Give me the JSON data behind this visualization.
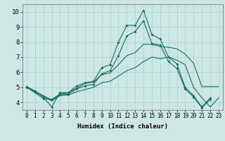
{
  "xlabel": "Humidex (Indice chaleur)",
  "xlim": [
    -0.5,
    23.5
  ],
  "ylim": [
    3.5,
    10.5
  ],
  "yticks": [
    4,
    5,
    6,
    7,
    8,
    9,
    10
  ],
  "xticks": [
    0,
    1,
    2,
    3,
    4,
    5,
    6,
    7,
    8,
    9,
    10,
    11,
    12,
    13,
    14,
    15,
    16,
    17,
    18,
    19,
    20,
    21,
    22,
    23
  ],
  "bg_color": "#cde8e4",
  "grid_color": "#aacfcb",
  "line_color": "#1a6b5a",
  "line1_x": [
    0,
    1,
    2,
    3,
    4,
    5,
    6,
    7,
    8,
    9,
    10,
    11,
    12,
    13,
    14,
    15,
    16,
    17,
    18,
    19,
    20,
    21,
    22
  ],
  "line1_y": [
    5.05,
    4.75,
    4.35,
    3.7,
    4.65,
    4.65,
    5.1,
    5.3,
    5.4,
    6.3,
    6.5,
    8.0,
    9.1,
    9.1,
    10.1,
    8.5,
    8.2,
    7.0,
    6.55,
    5.0,
    4.45,
    3.7,
    4.3
  ],
  "line2_x": [
    0,
    1,
    2,
    3,
    4,
    5,
    6,
    7,
    8,
    9,
    10,
    11,
    12,
    13,
    14,
    15,
    16,
    17,
    18,
    19,
    20,
    21,
    22
  ],
  "line2_y": [
    5.0,
    4.65,
    4.25,
    4.2,
    4.55,
    4.55,
    4.9,
    5.1,
    5.2,
    5.9,
    6.1,
    7.1,
    8.4,
    8.7,
    9.4,
    7.9,
    7.8,
    6.7,
    6.25,
    4.9,
    4.35,
    3.65,
    4.2
  ],
  "line3_x": [
    0,
    3,
    4,
    5,
    6,
    7,
    8,
    9,
    10,
    11,
    12,
    13,
    14,
    15,
    16,
    17,
    18,
    19,
    20,
    21,
    23
  ],
  "line3_y": [
    5.05,
    4.15,
    4.55,
    4.65,
    4.95,
    5.25,
    5.35,
    5.85,
    5.95,
    6.5,
    7.1,
    7.3,
    7.85,
    7.85,
    7.7,
    7.65,
    7.55,
    7.2,
    6.6,
    5.05,
    5.05
  ],
  "line4_x": [
    0,
    3,
    4,
    5,
    6,
    7,
    8,
    9,
    10,
    11,
    12,
    13,
    14,
    15,
    16,
    17,
    18,
    19,
    20,
    21,
    22,
    23
  ],
  "line4_y": [
    5.0,
    4.1,
    4.45,
    4.5,
    4.7,
    4.85,
    5.0,
    5.3,
    5.4,
    5.75,
    6.1,
    6.3,
    6.7,
    7.0,
    6.9,
    7.0,
    6.8,
    6.5,
    5.0,
    4.3,
    3.7,
    4.3
  ],
  "xlabel_fontsize": 6.5,
  "tick_fontsize": 5.5,
  "ytick_fontsize": 6.5
}
